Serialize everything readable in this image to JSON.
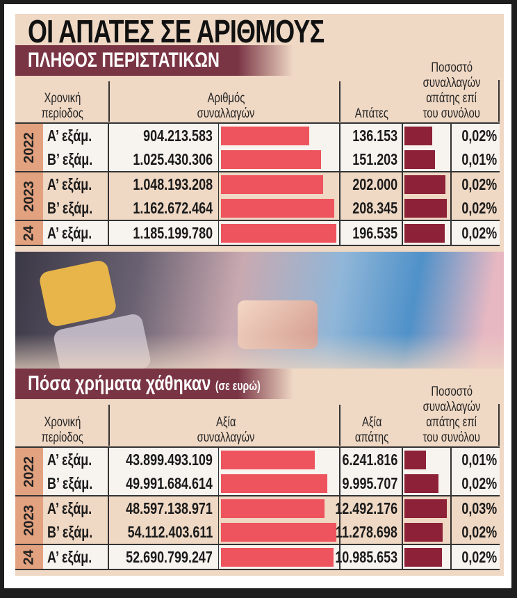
{
  "title": "ΟΙ ΑΠΑΤΕΣ ΣΕ ΑΡΙΘΜΟΥΣ",
  "section1": {
    "heading": "ΠΛΗΘΟΣ ΠΕΡΙΣΤΑΤΙΚΩΝ",
    "headers": {
      "period": [
        "Χρονική",
        "περίοδος"
      ],
      "value": [
        "Αριθμός",
        "συναλλαγών"
      ],
      "fraud": [
        "",
        "Απάτες"
      ],
      "pct": [
        "Ποσοστό",
        "συναλλαγών",
        "απάτης επί",
        "του συνόλου"
      ]
    },
    "groups": [
      {
        "year": "2022",
        "rows": [
          {
            "period": "Α’ εξάμ.",
            "value": "904.213.583",
            "v": 904213583,
            "fraud": "136.153",
            "f": 136153,
            "pct": "0,02%"
          },
          {
            "period": "Β’ εξάμ.",
            "value": "1.025.430.306",
            "v": 1025430306,
            "fraud": "151.203",
            "f": 151203,
            "pct": "0,01%"
          }
        ]
      },
      {
        "year": "2023",
        "rows": [
          {
            "period": "Α’ εξάμ.",
            "value": "1.048.193.208",
            "v": 1048193208,
            "fraud": "202.000",
            "f": 202000,
            "pct": "0,02%"
          },
          {
            "period": "Β’ εξάμ.",
            "value": "1.162.672.464",
            "v": 1162672464,
            "fraud": "208.345",
            "f": 208345,
            "pct": "0,02%"
          }
        ]
      },
      {
        "year": "24",
        "rows": [
          {
            "period": "Α’ εξάμ.",
            "value": "1.185.199.780",
            "v": 1185199780,
            "fraud": "196.535",
            "f": 196535,
            "pct": "0,02%"
          }
        ]
      }
    ]
  },
  "section2": {
    "heading": "Πόσα χρήματα χάθηκαν",
    "heading_note": "(σε ευρώ)",
    "headers": {
      "period": [
        "Χρονική",
        "περίοδος"
      ],
      "value": [
        "Αξία",
        "συναλλαγών"
      ],
      "fraud": [
        "Αξία",
        "απάτης"
      ],
      "pct": [
        "Ποσοστό",
        "συναλλαγών",
        "απάτης επί",
        "του συνόλου"
      ]
    },
    "groups": [
      {
        "year": "2022",
        "rows": [
          {
            "period": "Α’ εξάμ.",
            "value": "43.899.493.109",
            "v": 43899493109,
            "fraud": "6.241.816",
            "f": 6241816,
            "pct": "0,01%"
          },
          {
            "period": "Β’ εξάμ.",
            "value": "49.991.684.614",
            "v": 49991684614,
            "fraud": "9.995.707",
            "f": 9995707,
            "pct": "0,02%"
          }
        ]
      },
      {
        "year": "2023",
        "rows": [
          {
            "period": "Α’ εξάμ.",
            "value": "48.597.138.971",
            "v": 48597138971,
            "fraud": "12.492.176",
            "f": 12492176,
            "pct": "0,03%"
          },
          {
            "period": "Β’ εξάμ.",
            "value": "54.112.403.611",
            "v": 54112403611,
            "fraud": "11.278.698",
            "f": 11278698,
            "pct": "0,02%"
          }
        ]
      },
      {
        "year": "24",
        "rows": [
          {
            "period": "Α’ εξάμ.",
            "value": "52.690.799.247",
            "v": 52690799247,
            "fraud": "10.985.653",
            "f": 10985653,
            "pct": "0,02%"
          }
        ]
      }
    ]
  },
  "colors": {
    "value_bar": "#ee545d",
    "fraud_bar": "#8c2137",
    "band": "#7a3545",
    "year_cell": "#e3a27f",
    "panel": "#efd8c4"
  }
}
